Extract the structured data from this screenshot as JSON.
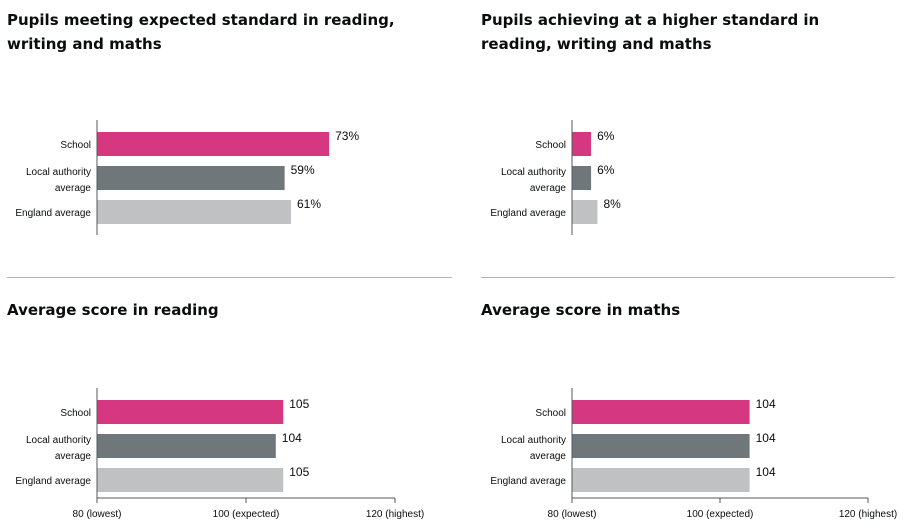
{
  "colors": {
    "school": "#d53880",
    "local_authority": "#6f777b",
    "england": "#bfc1c3",
    "axis": "#505a5f",
    "divider": "#b1b4b6"
  },
  "chart_data": [
    {
      "type": "bar",
      "title": "Pupils meeting expected standard in reading, writing and maths",
      "categories": [
        "School",
        "Local authority average",
        "England average"
      ],
      "values": [
        73,
        59,
        61
      ],
      "value_labels": [
        "73%",
        "59%",
        "61%"
      ],
      "xlim": [
        0,
        100
      ],
      "tick_labels": []
    },
    {
      "type": "bar",
      "title": "Pupils achieving at a higher standard in reading, writing and maths",
      "categories": [
        "School",
        "Local authority average",
        "England average"
      ],
      "values": [
        6,
        6,
        8
      ],
      "value_labels": [
        "6%",
        "6%",
        "8%"
      ],
      "xlim": [
        0,
        100
      ],
      "tick_labels": []
    },
    {
      "type": "bar",
      "title": "Average score in reading",
      "categories": [
        "School",
        "Local authority average",
        "England average"
      ],
      "values": [
        105,
        104,
        105
      ],
      "value_labels": [
        "105",
        "104",
        "105"
      ],
      "xlim": [
        80,
        120
      ],
      "ticks": [
        80,
        100,
        120
      ],
      "tick_labels": [
        "80 (lowest)",
        "100 (expected)",
        "120 (highest)"
      ]
    },
    {
      "type": "bar",
      "title": "Average score in maths",
      "categories": [
        "School",
        "Local authority average",
        "England average"
      ],
      "values": [
        104,
        104,
        104
      ],
      "value_labels": [
        "104",
        "104",
        "104"
      ],
      "xlim": [
        80,
        120
      ],
      "ticks": [
        80,
        100,
        120
      ],
      "tick_labels": [
        "80 (lowest)",
        "100 (expected)",
        "120 (highest)"
      ]
    }
  ]
}
